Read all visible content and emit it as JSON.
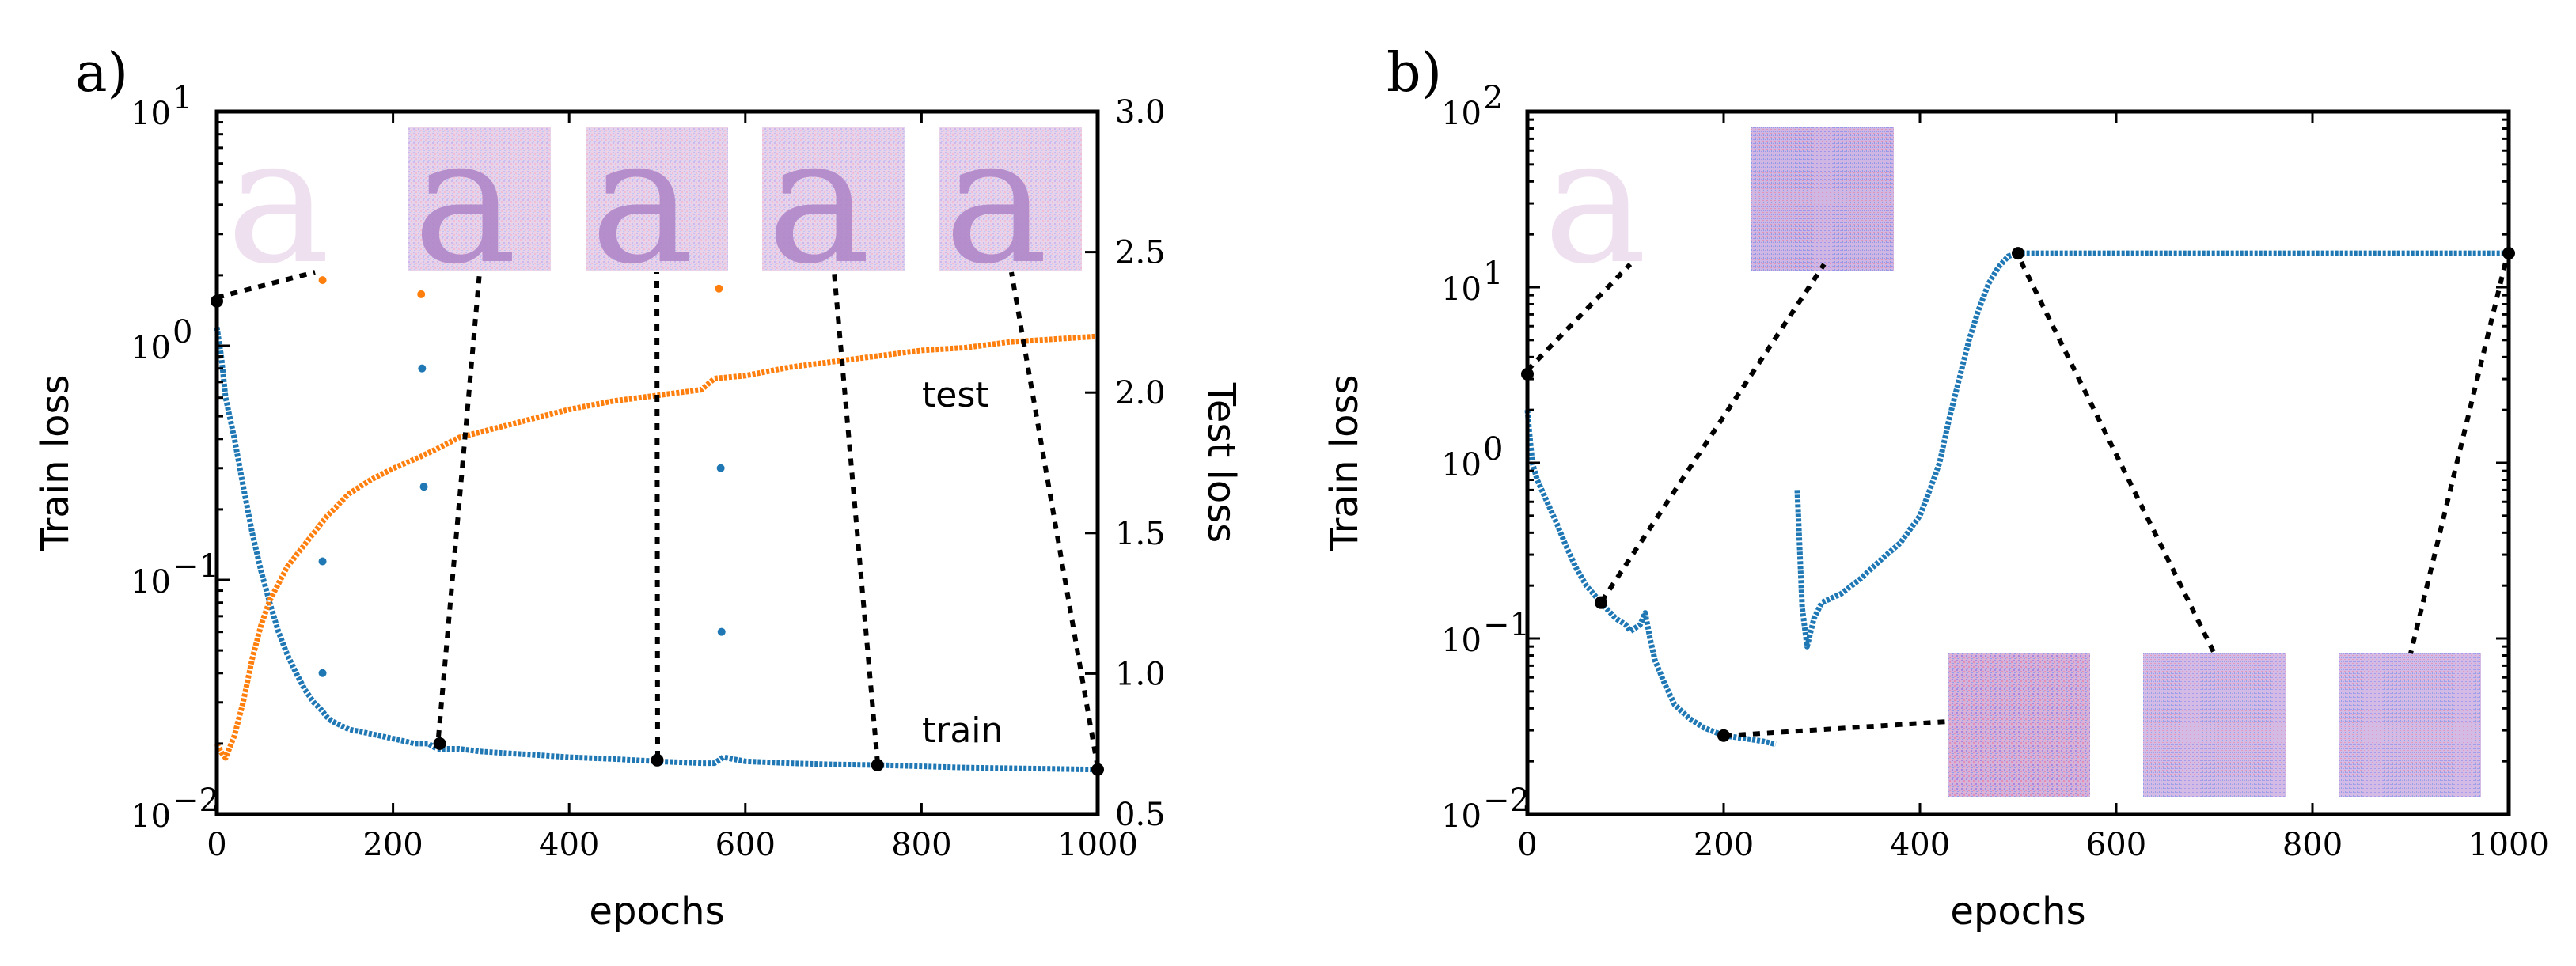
{
  "chart_data": [
    {
      "panel": "a)",
      "type": "line",
      "xlabel": "epochs",
      "ylabel": "Train loss",
      "y2label": "Test loss",
      "xlim": [
        0,
        1000
      ],
      "ylim": [
        0.01,
        10
      ],
      "yscale": "log",
      "y2lim": [
        0.5,
        3.0
      ],
      "xticks": [
        "0",
        "200",
        "400",
        "600",
        "800",
        "1000"
      ],
      "yticks": [
        {
          "base": "10",
          "exp": "1"
        },
        {
          "base": "10",
          "exp": "0"
        },
        {
          "base": "10",
          "exp": "−1"
        },
        {
          "base": "10",
          "exp": "−2"
        }
      ],
      "y2ticks": [
        "3.0",
        "2.5",
        "2.0",
        "1.5",
        "1.0",
        "0.5"
      ],
      "annotations": [
        "test",
        "train"
      ],
      "inset_glyph": "a",
      "series": [
        {
          "name": "train",
          "axis": "left",
          "color": "#1f77b4",
          "x": [
            0,
            5,
            10,
            20,
            30,
            40,
            50,
            60,
            70,
            80,
            90,
            100,
            110,
            118,
            125,
            130,
            150,
            175,
            200,
            225,
            232,
            240,
            250,
            275,
            300,
            350,
            400,
            450,
            500,
            550,
            565,
            575,
            600,
            650,
            700,
            750,
            800,
            850,
            900,
            950,
            1000
          ],
          "y": [
            1.2,
            0.9,
            0.6,
            0.4,
            0.25,
            0.16,
            0.11,
            0.08,
            0.06,
            0.048,
            0.04,
            0.034,
            0.03,
            0.028,
            0.026,
            0.025,
            0.023,
            0.022,
            0.021,
            0.02,
            0.02,
            0.02,
            0.019,
            0.019,
            0.0185,
            0.018,
            0.0175,
            0.0172,
            0.0168,
            0.0165,
            0.0165,
            0.0175,
            0.0168,
            0.0165,
            0.0163,
            0.0162,
            0.016,
            0.0158,
            0.0157,
            0.0156,
            0.0155
          ]
        },
        {
          "name": "test",
          "axis": "right",
          "color": "#ff7f0e",
          "x": [
            0,
            5,
            10,
            20,
            30,
            40,
            50,
            60,
            80,
            100,
            125,
            150,
            175,
            200,
            230,
            250,
            275,
            300,
            350,
            400,
            450,
            500,
            550,
            565,
            600,
            650,
            700,
            750,
            800,
            850,
            900,
            950,
            1000
          ],
          "y": [
            0.75,
            0.72,
            0.7,
            0.78,
            0.9,
            1.05,
            1.17,
            1.26,
            1.38,
            1.46,
            1.56,
            1.64,
            1.69,
            1.73,
            1.77,
            1.8,
            1.84,
            1.86,
            1.9,
            1.94,
            1.97,
            1.99,
            2.01,
            2.05,
            2.06,
            2.09,
            2.11,
            2.13,
            2.15,
            2.16,
            2.18,
            2.19,
            2.2
          ]
        },
        {
          "name": "train spikes",
          "axis": "left",
          "color": "#1f77b4",
          "x": [
            120,
            120,
            233,
            235,
            572,
            573
          ],
          "y": [
            0.12,
            0.04,
            0.8,
            0.25,
            0.3,
            0.06
          ]
        },
        {
          "name": "test spikes",
          "axis": "right",
          "color": "#ff7f0e",
          "x": [
            120,
            232,
            570
          ],
          "y": [
            2.4,
            2.35,
            2.37
          ]
        }
      ],
      "markers": [
        {
          "x": 0,
          "y": 1.55
        },
        {
          "x": 253,
          "y": 0.02
        },
        {
          "x": 500,
          "y": 0.017
        },
        {
          "x": 750,
          "y": 0.0162
        },
        {
          "x": 1000,
          "y": 0.0155
        }
      ]
    },
    {
      "panel": "b)",
      "type": "line",
      "xlabel": "epochs",
      "ylabel": "Train loss",
      "xlim": [
        0,
        1000
      ],
      "ylim": [
        0.01,
        100
      ],
      "yscale": "log",
      "xticks": [
        "0",
        "200",
        "400",
        "600",
        "800",
        "1000"
      ],
      "yticks": [
        {
          "base": "10",
          "exp": "2"
        },
        {
          "base": "10",
          "exp": "1"
        },
        {
          "base": "10",
          "exp": "0"
        },
        {
          "base": "10",
          "exp": "−1"
        },
        {
          "base": "10",
          "exp": "−2"
        }
      ],
      "inset_glyph": "a",
      "series": [
        {
          "name": "train segment 1",
          "color": "#1f77b4",
          "x": [
            0,
            2,
            5,
            10,
            20,
            30,
            40,
            50,
            60,
            75,
            90,
            100,
            105,
            115,
            120,
            125,
            130,
            140,
            150,
            165,
            180,
            200,
            220,
            240,
            253
          ],
          "y": [
            2.0,
            1.5,
            1.0,
            0.8,
            0.6,
            0.45,
            0.33,
            0.25,
            0.2,
            0.16,
            0.13,
            0.12,
            0.11,
            0.12,
            0.14,
            0.1,
            0.075,
            0.055,
            0.042,
            0.035,
            0.031,
            0.028,
            0.027,
            0.026,
            0.025
          ]
        },
        {
          "name": "train segment 2",
          "color": "#1f77b4",
          "x": [
            275,
            280,
            285,
            292,
            300,
            320,
            340,
            360,
            380,
            400,
            410,
            420,
            430,
            440,
            450,
            460,
            470,
            480,
            490,
            500,
            1000
          ],
          "y": [
            0.7,
            0.15,
            0.09,
            0.13,
            0.16,
            0.18,
            0.22,
            0.28,
            0.35,
            0.5,
            0.7,
            1.0,
            1.8,
            3.0,
            5.0,
            7.5,
            10.5,
            13.0,
            15.0,
            15.6,
            15.6
          ]
        }
      ],
      "markers": [
        {
          "x": 0,
          "y": 3.2
        },
        {
          "x": 75,
          "y": 0.16
        },
        {
          "x": 200,
          "y": 0.028
        },
        {
          "x": 500,
          "y": 15.6
        },
        {
          "x": 1000,
          "y": 15.6
        }
      ]
    }
  ]
}
